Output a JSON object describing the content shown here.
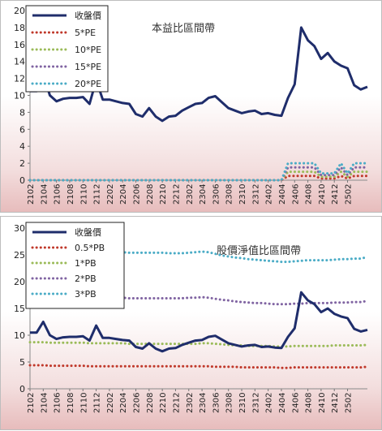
{
  "chart_data": [
    {
      "type": "line",
      "title": "本益比區間帶",
      "ylim": [
        0,
        20
      ],
      "yticks": [
        0,
        2,
        4,
        6,
        8,
        10,
        12,
        14,
        16,
        18,
        20
      ],
      "legend_position": "top-left",
      "x_tick_labels": [
        "2102",
        "2104",
        "2106",
        "2108",
        "2110",
        "2112",
        "2202",
        "2204",
        "2206",
        "2208",
        "2210",
        "2212",
        "2302",
        "2304",
        "2306",
        "2308",
        "2310",
        "2312",
        "2402",
        "2404",
        "2406",
        "2408",
        "2410",
        "2412",
        "2502"
      ],
      "series": [
        {
          "name": "收盤價",
          "color": "#1f2d6b",
          "style": "solid",
          "values": [
            10.5,
            10.5,
            12.5,
            10,
            9.3,
            9.6,
            9.7,
            9.7,
            9.8,
            9,
            11.8,
            9.5,
            9.5,
            9.3,
            9.1,
            9,
            7.8,
            7.5,
            8.5,
            7.5,
            7,
            7.5,
            7.6,
            8.2,
            8.6,
            9,
            9.1,
            9.7,
            9.9,
            9.2,
            8.5,
            8.2,
            7.9,
            8.1,
            8.2,
            7.8,
            7.9,
            7.7,
            7.6,
            9.7,
            11.3,
            18,
            16.5,
            15.8,
            14.3,
            15,
            14,
            13.5,
            13.2,
            11.2,
            10.7,
            11
          ]
        },
        {
          "name": "5*PE",
          "color": "#c0392b",
          "style": "dotted",
          "values": [
            0,
            0,
            0,
            0,
            0,
            0,
            0,
            0,
            0,
            0,
            0,
            0,
            0,
            0,
            0,
            0,
            0,
            0,
            0,
            0,
            0,
            0,
            0,
            0,
            0,
            0,
            0,
            0,
            0,
            0,
            0,
            0,
            0,
            0,
            0,
            0,
            0,
            0,
            0,
            0.5,
            0.5,
            0.5,
            0.5,
            0.5,
            0.2,
            0.2,
            0.2,
            0.5,
            0.2,
            0.5,
            0.5,
            0.5
          ]
        },
        {
          "name": "10*PE",
          "color": "#9bbb59",
          "style": "dotted",
          "values": [
            0,
            0,
            0,
            0,
            0,
            0,
            0,
            0,
            0,
            0,
            0,
            0,
            0,
            0,
            0,
            0,
            0,
            0,
            0,
            0,
            0,
            0,
            0,
            0,
            0,
            0,
            0,
            0,
            0,
            0,
            0,
            0,
            0,
            0,
            0,
            0,
            0,
            0,
            0,
            1,
            1,
            1,
            1,
            1,
            0.4,
            0.4,
            0.4,
            1,
            0.4,
            1,
            1,
            1
          ]
        },
        {
          "name": "15*PE",
          "color": "#8064a2",
          "style": "dotted",
          "values": [
            0,
            0,
            0,
            0,
            0,
            0,
            0,
            0,
            0,
            0,
            0,
            0,
            0,
            0,
            0,
            0,
            0,
            0,
            0,
            0,
            0,
            0,
            0,
            0,
            0,
            0,
            0,
            0,
            0,
            0,
            0,
            0,
            0,
            0,
            0,
            0,
            0,
            0,
            0,
            1.5,
            1.5,
            1.5,
            1.5,
            1.5,
            0.6,
            0.6,
            0.6,
            1.5,
            0.6,
            1.5,
            1.5,
            1.5
          ]
        },
        {
          "name": "20*PE",
          "color": "#4bacc6",
          "style": "dotted",
          "values": [
            0,
            0,
            0,
            0,
            0,
            0,
            0,
            0,
            0,
            0,
            0,
            0,
            0,
            0,
            0,
            0,
            0,
            0,
            0,
            0,
            0,
            0,
            0,
            0,
            0,
            0,
            0,
            0,
            0,
            0,
            0,
            0,
            0,
            0,
            0,
            0,
            0,
            0,
            0,
            2,
            2,
            2,
            2,
            2,
            0.8,
            0.8,
            0.8,
            2,
            0.8,
            2,
            2,
            2
          ]
        }
      ]
    },
    {
      "type": "line",
      "title": "股價淨值比區間帶",
      "ylim": [
        0,
        30
      ],
      "yticks": [
        0,
        5,
        10,
        15,
        20,
        25,
        30
      ],
      "legend_position": "top-left",
      "x_tick_labels": [
        "2102",
        "2104",
        "2106",
        "2108",
        "2110",
        "2112",
        "2202",
        "2204",
        "2206",
        "2208",
        "2210",
        "2212",
        "2302",
        "2304",
        "2306",
        "2308",
        "2310",
        "2312",
        "2402",
        "2404",
        "2406",
        "2408",
        "2410",
        "2412",
        "2502"
      ],
      "series": [
        {
          "name": "收盤價",
          "color": "#1f2d6b",
          "style": "solid",
          "values": [
            10.5,
            10.5,
            12.5,
            10,
            9.3,
            9.6,
            9.7,
            9.7,
            9.8,
            9,
            11.8,
            9.5,
            9.5,
            9.3,
            9.1,
            9,
            7.8,
            7.5,
            8.5,
            7.5,
            7,
            7.5,
            7.6,
            8.2,
            8.6,
            9,
            9.1,
            9.7,
            9.9,
            9.2,
            8.5,
            8.2,
            7.9,
            8.1,
            8.2,
            7.8,
            7.9,
            7.7,
            7.6,
            9.7,
            11.3,
            18,
            16.5,
            15.8,
            14.3,
            15,
            14,
            13.5,
            13.2,
            11.2,
            10.7,
            11
          ]
        },
        {
          "name": "0.5*PB",
          "color": "#c0392b",
          "style": "dotted",
          "values": [
            4.4,
            4.4,
            4.4,
            4.3,
            4.3,
            4.3,
            4.3,
            4.3,
            4.3,
            4.2,
            4.2,
            4.2,
            4.2,
            4.2,
            4.2,
            4.2,
            4.2,
            4.2,
            4.2,
            4.2,
            4.2,
            4.2,
            4.2,
            4.2,
            4.2,
            4.2,
            4.2,
            4.2,
            4.1,
            4.1,
            4.1,
            4.1,
            4.0,
            4.0,
            4.0,
            4.0,
            4.0,
            4.0,
            3.9,
            3.9,
            4.0,
            4.0,
            4.0,
            4.0,
            4.0,
            4.0,
            4.0,
            4.0,
            4.0,
            4.0,
            4.0,
            4.1
          ]
        },
        {
          "name": "1*PB",
          "color": "#9bbb59",
          "style": "dotted",
          "values": [
            8.7,
            8.7,
            8.7,
            8.6,
            8.6,
            8.6,
            8.6,
            8.6,
            8.6,
            8.5,
            8.5,
            8.5,
            8.5,
            8.5,
            8.5,
            8.4,
            8.4,
            8.4,
            8.4,
            8.4,
            8.4,
            8.4,
            8.4,
            8.4,
            8.4,
            8.4,
            8.5,
            8.5,
            8.4,
            8.3,
            8.2,
            8.1,
            8.1,
            8.0,
            8.0,
            8.0,
            8.0,
            7.9,
            7.9,
            7.9,
            8.0,
            8.0,
            8.0,
            8.0,
            8.0,
            8.0,
            8.1,
            8.1,
            8.1,
            8.1,
            8.1,
            8.2
          ]
        },
        {
          "name": "2*PB",
          "color": "#8064a2",
          "style": "dotted",
          "values": [
            17.4,
            17.4,
            17.4,
            17.3,
            17.3,
            17.3,
            17.2,
            17.2,
            17.2,
            17.0,
            17.0,
            17.0,
            17.0,
            17.0,
            17.0,
            16.9,
            16.9,
            16.9,
            16.9,
            16.9,
            16.9,
            16.9,
            16.9,
            16.9,
            17.0,
            17.0,
            17.1,
            17.0,
            16.8,
            16.6,
            16.5,
            16.3,
            16.2,
            16.1,
            16.0,
            16.0,
            15.9,
            15.8,
            15.8,
            15.8,
            15.9,
            15.9,
            16.0,
            16.0,
            16.0,
            16.0,
            16.1,
            16.1,
            16.1,
            16.2,
            16.2,
            16.4
          ]
        },
        {
          "name": "3*PB",
          "color": "#4bacc6",
          "style": "dotted",
          "values": [
            26.1,
            26.0,
            26.0,
            25.9,
            25.9,
            25.8,
            25.8,
            25.8,
            25.8,
            25.6,
            25.6,
            25.5,
            25.5,
            25.5,
            25.5,
            25.4,
            25.4,
            25.4,
            25.4,
            25.4,
            25.4,
            25.3,
            25.3,
            25.3,
            25.4,
            25.5,
            25.6,
            25.5,
            25.2,
            24.9,
            24.7,
            24.5,
            24.4,
            24.2,
            24.1,
            24.0,
            23.9,
            23.8,
            23.7,
            23.7,
            23.8,
            23.9,
            24.0,
            24.0,
            24.0,
            24.0,
            24.1,
            24.2,
            24.2,
            24.3,
            24.3,
            24.6
          ]
        }
      ]
    }
  ]
}
